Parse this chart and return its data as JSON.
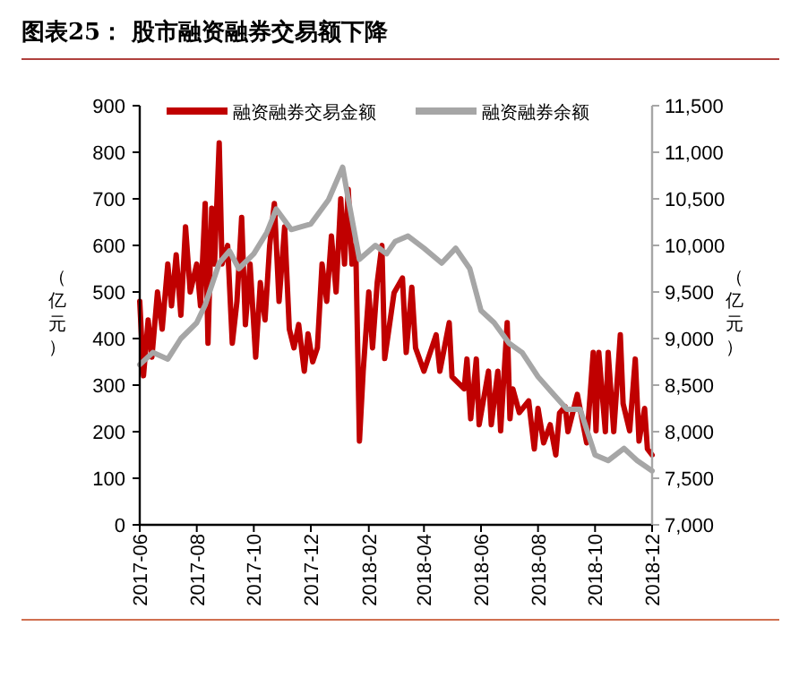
{
  "chart_data": {
    "type": "line",
    "title": "图表25： 股市融资融券交易额下降",
    "ylabel": "（亿元）",
    "y2label": "（亿元）",
    "legend": "top",
    "xlim": [
      "2017-06-01",
      "2018-12-01"
    ],
    "xticks": [
      "2017-06",
      "2017-08",
      "2017-10",
      "2017-12",
      "2018-02",
      "2018-04",
      "2018-06",
      "2018-08",
      "2018-10",
      "2018-12"
    ],
    "ylim": [
      0,
      900
    ],
    "yticks": [
      0,
      100,
      200,
      300,
      400,
      500,
      600,
      700,
      800,
      900
    ],
    "y2lim": [
      7000,
      11500
    ],
    "y2ticks": [
      {
        "value": 7000,
        "label": "7,000"
      },
      {
        "value": 7500,
        "label": "7,500"
      },
      {
        "value": 8000,
        "label": "8,000"
      },
      {
        "value": 8500,
        "label": "8,500"
      },
      {
        "value": 9000,
        "label": "9,000"
      },
      {
        "value": 9500,
        "label": "9,500"
      },
      {
        "value": 10000,
        "label": "10,000"
      },
      {
        "value": 10500,
        "label": "10,500"
      },
      {
        "value": 11000,
        "label": "11,000"
      },
      {
        "value": 11500,
        "label": "11,500"
      }
    ],
    "series": [
      {
        "name": "融资融券交易金额",
        "color": "#c00000",
        "x": [
          "2017-06-01",
          "2017-06-05",
          "2017-06-10",
          "2017-06-14",
          "2017-06-20",
          "2017-06-25",
          "2017-07-01",
          "2017-07-05",
          "2017-07-10",
          "2017-07-15",
          "2017-07-20",
          "2017-07-25",
          "2017-08-01",
          "2017-08-05",
          "2017-08-10",
          "2017-08-13",
          "2017-08-17",
          "2017-08-20",
          "2017-08-25",
          "2017-08-28",
          "2017-09-03",
          "2017-09-08",
          "2017-09-13",
          "2017-09-18",
          "2017-09-22",
          "2017-09-27",
          "2017-10-03",
          "2017-10-08",
          "2017-10-13",
          "2017-10-18",
          "2017-10-23",
          "2017-10-28",
          "2017-11-03",
          "2017-11-08",
          "2017-11-13",
          "2017-11-18",
          "2017-11-24",
          "2017-11-28",
          "2017-12-03",
          "2017-12-08",
          "2017-12-13",
          "2017-12-18",
          "2017-12-23",
          "2017-12-28",
          "2018-01-02",
          "2018-01-06",
          "2018-01-10",
          "2018-01-14",
          "2018-01-18",
          "2018-01-22",
          "2018-01-26",
          "2018-02-01",
          "2018-02-05",
          "2018-02-10",
          "2018-02-15",
          "2018-02-18",
          "2018-02-28",
          "2018-03-09",
          "2018-03-13",
          "2018-03-19",
          "2018-03-23",
          "2018-04-01",
          "2018-04-14",
          "2018-04-18",
          "2018-04-28",
          "2018-05-01",
          "2018-05-14",
          "2018-05-17",
          "2018-05-21",
          "2018-05-27",
          "2018-05-30",
          "2018-06-09",
          "2018-06-12",
          "2018-06-19",
          "2018-06-22",
          "2018-06-29",
          "2018-07-02",
          "2018-07-05",
          "2018-07-12",
          "2018-07-22",
          "2018-07-28",
          "2018-08-01",
          "2018-08-07",
          "2018-08-14",
          "2018-08-20",
          "2018-08-24",
          "2018-08-30",
          "2018-09-02",
          "2018-09-12",
          "2018-09-22",
          "2018-09-29",
          "2018-10-02",
          "2018-10-05",
          "2018-10-12",
          "2018-10-15",
          "2018-10-21",
          "2018-10-28",
          "2018-10-31",
          "2018-11-07",
          "2018-11-13",
          "2018-11-17",
          "2018-11-23",
          "2018-11-26",
          "2018-12-01"
        ],
        "values": [
          480,
          320,
          440,
          360,
          500,
          420,
          560,
          470,
          580,
          450,
          640,
          500,
          560,
          470,
          690,
          390,
          680,
          560,
          820,
          560,
          600,
          390,
          480,
          660,
          430,
          560,
          360,
          520,
          440,
          600,
          690,
          480,
          640,
          420,
          380,
          430,
          330,
          410,
          350,
          380,
          560,
          480,
          620,
          500,
          700,
          560,
          720,
          560,
          600,
          180,
          330,
          500,
          380,
          520,
          600,
          357,
          498,
          530,
          370,
          510,
          380,
          330,
          408,
          330,
          434,
          318,
          292,
          356,
          228,
          356,
          215,
          330,
          215,
          330,
          202,
          434,
          228,
          292,
          241,
          266,
          163,
          250,
          176,
          215,
          150,
          240,
          254,
          200,
          280,
          176,
          370,
          202,
          370,
          200,
          370,
          200,
          408,
          260,
          202,
          356,
          180,
          250,
          163,
          150
        ]
      },
      {
        "name": "融资融券余额",
        "color": "#a6a6a6",
        "axis": "y2",
        "x": [
          "2017-06-01",
          "2017-06-15",
          "2017-07-01",
          "2017-07-15",
          "2017-08-01",
          "2017-08-10",
          "2017-08-25",
          "2017-09-05",
          "2017-09-15",
          "2017-10-01",
          "2017-10-15",
          "2017-10-25",
          "2017-11-10",
          "2017-12-01",
          "2017-12-20",
          "2018-01-04",
          "2018-01-10",
          "2018-01-22",
          "2018-02-08",
          "2018-02-20",
          "2018-03-01",
          "2018-03-15",
          "2018-04-01",
          "2018-04-20",
          "2018-05-05",
          "2018-05-20",
          "2018-06-01",
          "2018-06-15",
          "2018-07-01",
          "2018-07-15",
          "2018-08-01",
          "2018-08-15",
          "2018-09-01",
          "2018-09-15",
          "2018-10-01",
          "2018-10-15",
          "2018-11-01",
          "2018-11-15",
          "2018-12-01"
        ],
        "values": [
          8720,
          8850,
          8780,
          9000,
          9170,
          9360,
          9810,
          9940,
          9750,
          9910,
          10140,
          10390,
          10170,
          10230,
          10490,
          10840,
          10500,
          9850,
          10000,
          9910,
          10040,
          10100,
          9970,
          9810,
          9970,
          9750,
          9300,
          9170,
          8950,
          8850,
          8590,
          8430,
          8240,
          8240,
          7750,
          7690,
          7820,
          7690,
          7580
        ]
      }
    ]
  }
}
